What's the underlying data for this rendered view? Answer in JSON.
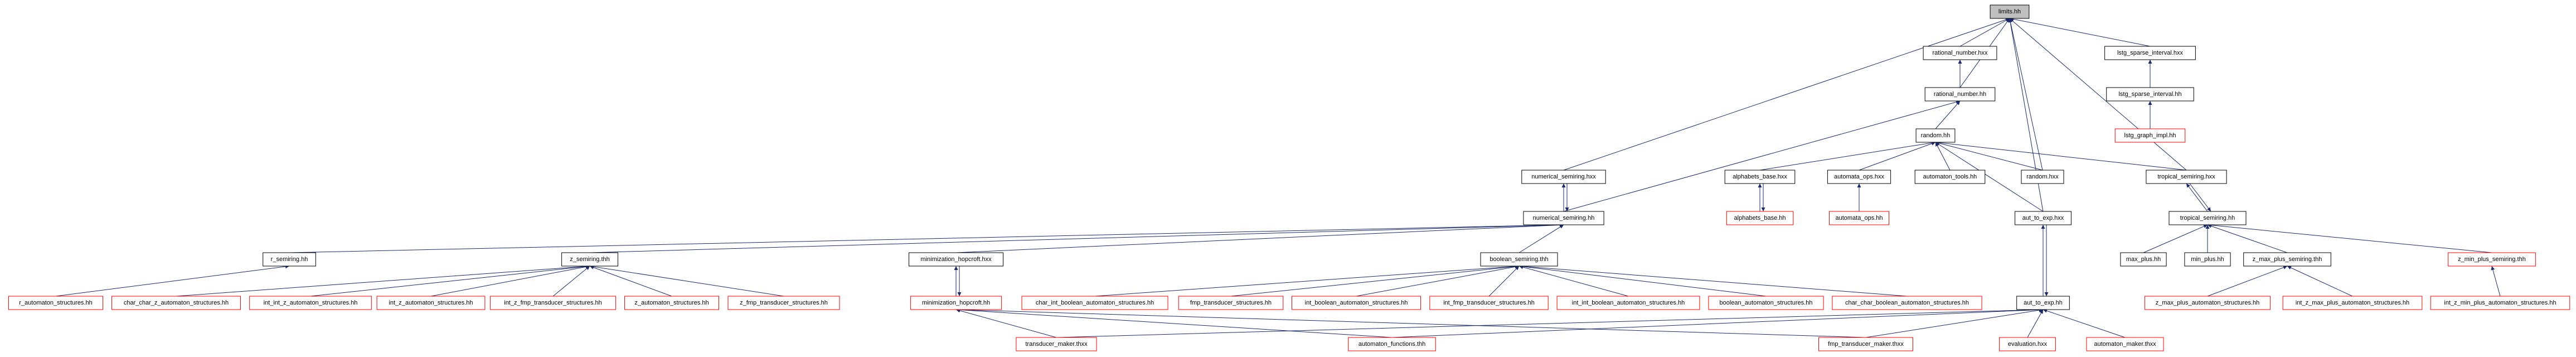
{
  "nodes": [
    {
      "label": "limits.hh"
    },
    {
      "label": "rational_number.hxx"
    },
    {
      "label": "lstg_sparse_interval.hxx"
    },
    {
      "label": "rational_number.hh"
    },
    {
      "label": "lstg_sparse_interval.hh"
    },
    {
      "label": "random.hh"
    },
    {
      "label": "lstg_graph_impl.hh"
    },
    {
      "label": "numerical_semiring.hxx"
    },
    {
      "label": "alphabets_base.hxx"
    },
    {
      "label": "automata_ops.hxx"
    },
    {
      "label": "automaton_tools.hh"
    },
    {
      "label": "random.hxx"
    },
    {
      "label": "tropical_semiring.hxx"
    },
    {
      "label": "numerical_semiring.hh"
    },
    {
      "label": "alphabets_base.hh"
    },
    {
      "label": "automata_ops.hh"
    },
    {
      "label": "aut_to_exp.hxx"
    },
    {
      "label": "tropical_semiring.hh"
    },
    {
      "label": "r_semiring.hh"
    },
    {
      "label": "z_semiring.thh"
    },
    {
      "label": "minimization_hopcroft.hxx"
    },
    {
      "label": "boolean_semiring.thh"
    },
    {
      "label": "max_plus.hh"
    },
    {
      "label": "min_plus.hh"
    },
    {
      "label": "z_max_plus_semiring.thh"
    },
    {
      "label": "z_min_plus_semiring.thh"
    },
    {
      "label": "r_automaton_structures.hh"
    },
    {
      "label": "char_char_z_automaton_structures.hh"
    },
    {
      "label": "int_int_z_automaton_structures.hh"
    },
    {
      "label": "int_z_automaton_structures.hh"
    },
    {
      "label": "int_z_fmp_transducer_structures.hh"
    },
    {
      "label": "z_automaton_structures.hh"
    },
    {
      "label": "z_fmp_transducer_structures.hh"
    },
    {
      "label": "minimization_hopcroft.hh"
    },
    {
      "label": "char_int_boolean_automaton_structures.hh"
    },
    {
      "label": "fmp_transducer_structures.hh"
    },
    {
      "label": "int_boolean_automaton_structures.hh"
    },
    {
      "label": "int_fmp_transducer_structures.hh"
    },
    {
      "label": "int_int_boolean_automaton_structures.hh"
    },
    {
      "label": "boolean_automaton_structures.hh"
    },
    {
      "label": "char_char_boolean_automaton_structures.hh"
    },
    {
      "label": "aut_to_exp.hh"
    },
    {
      "label": "z_max_plus_automaton_structures.hh"
    },
    {
      "label": "int_z_max_plus_automaton_structures.hh"
    },
    {
      "label": "int_z_min_plus_automaton_structures.hh"
    },
    {
      "label": "transducer_maker.thxx"
    },
    {
      "label": "automaton_functions.thh"
    },
    {
      "label": "fmp_transducer_maker.thxx"
    },
    {
      "label": "evaluation.hxx"
    },
    {
      "label": "automaton_maker.thxx"
    }
  ]
}
